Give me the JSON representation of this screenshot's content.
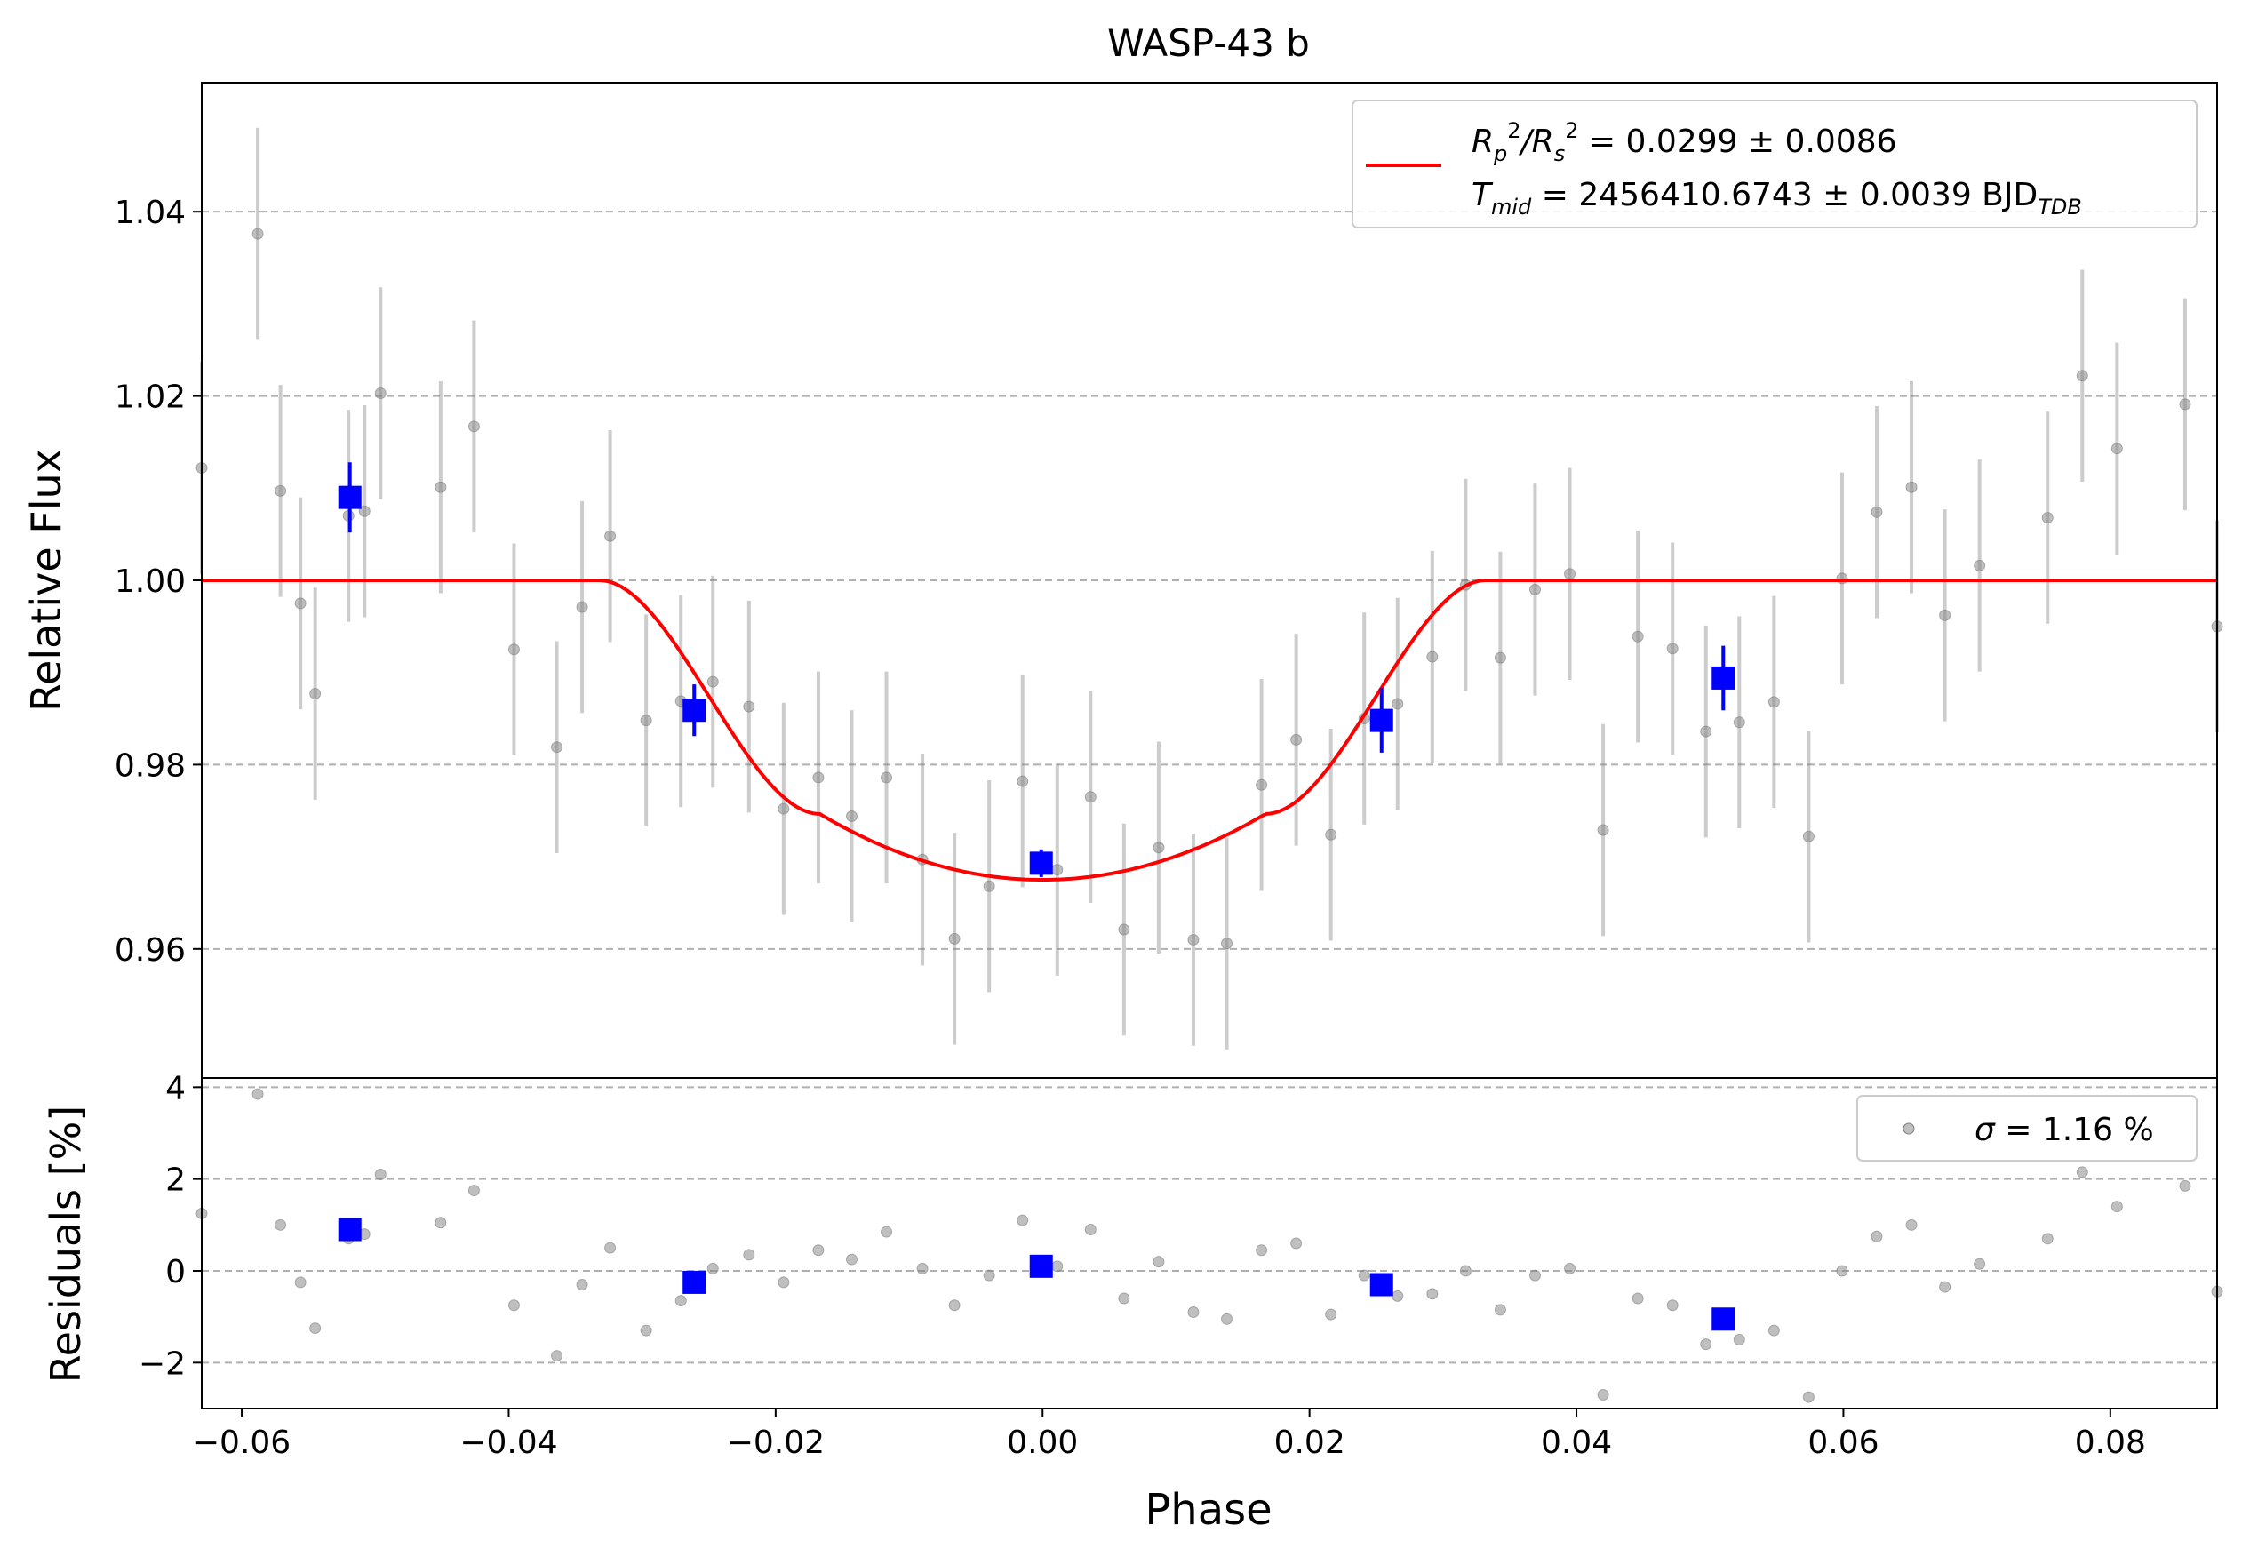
{
  "chart_data": [
    {
      "type": "scatter",
      "panel": "main",
      "title": "WASP-43 b",
      "xlabel": "",
      "ylabel": "Relative Flux",
      "xlim": [
        -0.063,
        0.088
      ],
      "ylim": [
        0.946,
        1.054
      ],
      "xticks": [
        -0.06,
        -0.04,
        -0.02,
        0.0,
        0.02,
        0.04,
        0.06,
        0.08
      ],
      "xtick_labels": [
        "−0.06",
        "−0.04",
        "−0.02",
        "0.00",
        "0.02",
        "0.04",
        "0.06",
        "0.08"
      ],
      "yticks": [
        0.96,
        0.98,
        1.0,
        1.02,
        1.04
      ],
      "ytick_labels": [
        "0.96",
        "0.98",
        "1.00",
        "1.02",
        "1.04"
      ],
      "grid": "horizontal dashed",
      "legend_position": "top-right",
      "legend": {
        "line1_prefix": "R",
        "line1_sub1": "p",
        "line1_sup1": "2",
        "line1_slash": "/R",
        "line1_sub2": "s",
        "line1_sup2": "2",
        "line1_value": " = 0.0299 ± 0.0086",
        "line2_prefix": "T",
        "line2_sub": "mid",
        "line2_value": " = 2456410.6743 ± 0.0039 BJD",
        "line2_unit_sub": "TDB"
      },
      "model": {
        "color": "#ff0000",
        "depth": 0.0325,
        "t14_half": 0.0332,
        "ingress": 0.0165
      },
      "raw_points": {
        "color": "#808080",
        "x": [
          -0.063,
          -0.0588,
          -0.0571,
          -0.0556,
          -0.0545,
          -0.052,
          -0.0508,
          -0.0496,
          -0.0451,
          -0.0426,
          -0.0396,
          -0.0364,
          -0.0345,
          -0.0324,
          -0.0297,
          -0.0271,
          -0.0247,
          -0.022,
          -0.0194,
          -0.0168,
          -0.0143,
          -0.0117,
          -0.009,
          -0.0066,
          -0.004,
          -0.0015,
          0.0011,
          0.0036,
          0.0061,
          0.0087,
          0.0113,
          0.0138,
          0.0164,
          0.019,
          0.0216,
          0.0241,
          0.0266,
          0.0292,
          0.0317,
          0.0343,
          0.0369,
          0.0395,
          0.042,
          0.0446,
          0.0472,
          0.0497,
          0.0522,
          0.0548,
          0.0574,
          0.0599,
          0.0625,
          0.0651,
          0.0676,
          0.0702,
          0.0753,
          0.0779,
          0.0805,
          0.0856,
          0.088
        ],
        "y": [
          1.0122,
          1.0376,
          1.0097,
          0.9975,
          0.9877,
          1.007,
          1.0075,
          1.0203,
          1.0101,
          1.0167,
          0.9925,
          0.9819,
          0.9971,
          1.0048,
          0.9848,
          0.9869,
          0.989,
          0.9863,
          0.9752,
          0.9786,
          0.9744,
          0.9786,
          0.9697,
          0.9611,
          0.9668,
          0.9782,
          0.9686,
          0.9765,
          0.9621,
          0.971,
          0.961,
          0.9606,
          0.9778,
          0.9827,
          0.9724,
          0.985,
          0.9866,
          0.9917,
          0.9995,
          0.9916,
          0.999,
          1.0007,
          0.9729,
          0.9939,
          0.9926,
          0.9836,
          0.9846,
          0.9868,
          0.9722,
          1.0002,
          1.0074,
          1.0101,
          0.9962,
          1.0016,
          1.0068,
          1.0222,
          1.0143,
          1.0191,
          0.995
        ],
        "err": [
          0.0115,
          0.0115,
          0.0115,
          0.0115,
          0.0115,
          0.0115,
          0.0115,
          0.0115,
          0.0115,
          0.0115,
          0.0115,
          0.0115,
          0.0115,
          0.0115,
          0.0115,
          0.0115,
          0.0115,
          0.0115,
          0.0115,
          0.0115,
          0.0115,
          0.0115,
          0.0115,
          0.0115,
          0.0115,
          0.0115,
          0.0115,
          0.0115,
          0.0115,
          0.0115,
          0.0115,
          0.0115,
          0.0115,
          0.0115,
          0.0115,
          0.0115,
          0.0115,
          0.0115,
          0.0115,
          0.0115,
          0.0115,
          0.0115,
          0.0115,
          0.0115,
          0.0115,
          0.0115,
          0.0115,
          0.0115,
          0.0115,
          0.0115,
          0.0115,
          0.0115,
          0.0115,
          0.0115,
          0.0115,
          0.0115,
          0.0115,
          0.0115,
          0.0115
        ]
      },
      "binned_points": {
        "color": "#0000ff",
        "x": [
          -0.0519,
          -0.0261,
          -0.0001,
          0.0254,
          0.051
        ],
        "y": [
          1.009,
          0.9859,
          0.9693,
          0.9848,
          0.9894
        ],
        "err": [
          0.0038,
          0.0028,
          0.0015,
          0.0035,
          0.0035
        ]
      }
    },
    {
      "type": "scatter",
      "panel": "residuals",
      "xlabel": "Phase",
      "ylabel": "Residuals [%]",
      "xlim": [
        -0.063,
        0.088
      ],
      "ylim": [
        -3.0,
        4.2
      ],
      "yticks": [
        -2,
        0,
        2,
        4
      ],
      "ytick_labels": [
        "−2",
        "0",
        "2",
        "4"
      ],
      "grid": "horizontal dashed",
      "legend_position": "top-right",
      "legend": {
        "sigma_symbol": "σ",
        "sigma_text": " = 1.16 %"
      },
      "raw_points": {
        "color": "#808080",
        "x": [
          -0.063,
          -0.0588,
          -0.0571,
          -0.0556,
          -0.0545,
          -0.052,
          -0.0508,
          -0.0496,
          -0.0451,
          -0.0426,
          -0.0396,
          -0.0364,
          -0.0345,
          -0.0324,
          -0.0297,
          -0.0271,
          -0.0247,
          -0.022,
          -0.0194,
          -0.0168,
          -0.0143,
          -0.0117,
          -0.009,
          -0.0066,
          -0.004,
          -0.0015,
          0.0011,
          0.0036,
          0.0061,
          0.0087,
          0.0113,
          0.0138,
          0.0164,
          0.019,
          0.0216,
          0.0241,
          0.0266,
          0.0292,
          0.0317,
          0.0343,
          0.0369,
          0.0395,
          0.042,
          0.0446,
          0.0472,
          0.0497,
          0.0522,
          0.0548,
          0.0574,
          0.0599,
          0.0625,
          0.0651,
          0.0676,
          0.0702,
          0.0753,
          0.0779,
          0.0805,
          0.0856,
          0.088
        ],
        "y": [
          1.25,
          3.85,
          1.0,
          -0.25,
          -1.25,
          0.7,
          0.8,
          2.1,
          1.05,
          1.75,
          -0.75,
          -1.85,
          -0.3,
          0.5,
          -1.3,
          -0.65,
          0.05,
          0.35,
          -0.25,
          0.45,
          0.25,
          0.85,
          0.05,
          -0.75,
          -0.1,
          1.1,
          0.1,
          0.9,
          -0.6,
          0.2,
          -0.9,
          -1.05,
          0.45,
          0.6,
          -0.95,
          -0.1,
          -0.55,
          -0.5,
          0.0,
          -0.85,
          -0.1,
          0.05,
          -2.7,
          -0.6,
          -0.75,
          -1.6,
          -1.5,
          -1.3,
          -2.75,
          0.0,
          0.75,
          1.0,
          -0.35,
          0.15,
          0.7,
          2.15,
          1.4,
          1.85,
          -0.45
        ]
      },
      "binned_points": {
        "color": "#0000ff",
        "x": [
          -0.0519,
          -0.0261,
          -0.0001,
          0.0254,
          0.051
        ],
        "y": [
          0.9,
          -0.25,
          0.1,
          -0.3,
          -1.05
        ]
      }
    }
  ]
}
